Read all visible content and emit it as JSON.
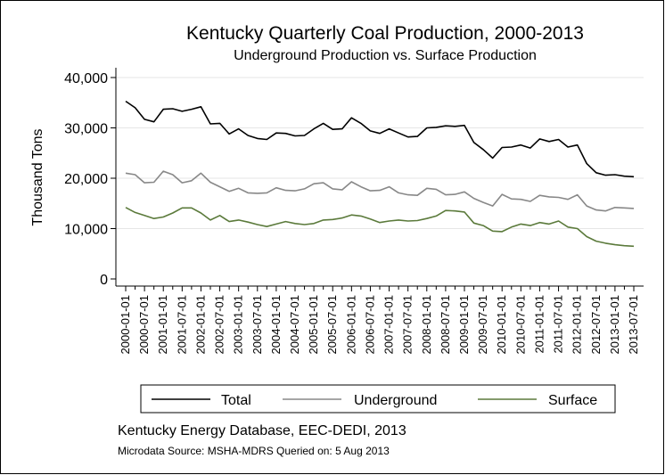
{
  "chart_data": {
    "type": "line",
    "title": "Kentucky Quarterly Coal Production, 2000-2013",
    "subtitle": "Underground Production vs. Surface Production",
    "ylabel": "Thousand Tons",
    "xlabel": "",
    "ylim": [
      0,
      40000
    ],
    "yticks": [
      0,
      10000,
      20000,
      30000,
      40000
    ],
    "ytick_labels": [
      "0",
      "10,000",
      "20,000",
      "30,000",
      "40,000"
    ],
    "grid": true,
    "legend": "bottom",
    "x": [
      "2000-01-01",
      "2000-04-01",
      "2000-07-01",
      "2000-10-01",
      "2001-01-01",
      "2001-04-01",
      "2001-07-01",
      "2001-10-01",
      "2002-01-01",
      "2002-04-01",
      "2002-07-01",
      "2002-10-01",
      "2003-01-01",
      "2003-04-01",
      "2003-07-01",
      "2003-10-01",
      "2004-01-01",
      "2004-04-01",
      "2004-07-01",
      "2004-10-01",
      "2005-01-01",
      "2005-04-01",
      "2005-07-01",
      "2005-10-01",
      "2006-01-01",
      "2006-04-01",
      "2006-07-01",
      "2006-10-01",
      "2007-01-01",
      "2007-04-01",
      "2007-07-01",
      "2007-10-01",
      "2008-01-01",
      "2008-04-01",
      "2008-07-01",
      "2008-10-01",
      "2009-01-01",
      "2009-04-01",
      "2009-07-01",
      "2009-10-01",
      "2010-01-01",
      "2010-04-01",
      "2010-07-01",
      "2010-10-01",
      "2011-01-01",
      "2011-04-01",
      "2011-07-01",
      "2011-10-01",
      "2012-01-01",
      "2012-04-01",
      "2012-07-01",
      "2012-10-01",
      "2013-01-01",
      "2013-04-01",
      "2013-07-01"
    ],
    "x_tick_labels": [
      "2000-01-01",
      "2000-07-01",
      "2001-01-01",
      "2001-07-01",
      "2002-01-01",
      "2002-07-01",
      "2003-01-01",
      "2003-07-01",
      "2004-01-01",
      "2004-07-01",
      "2005-01-01",
      "2005-07-01",
      "2006-01-01",
      "2006-07-01",
      "2007-01-01",
      "2007-07-01",
      "2008-01-01",
      "2008-07-01",
      "2009-01-01",
      "2009-07-01",
      "2010-01-01",
      "2010-07-01",
      "2011-01-01",
      "2011-07-01",
      "2012-01-01",
      "2012-07-01",
      "2013-01-01",
      "2013-07-01"
    ],
    "series": [
      {
        "name": "Total",
        "color": "#000000",
        "values": [
          35300,
          34000,
          31700,
          31200,
          33700,
          33800,
          33300,
          33700,
          34200,
          30800,
          30900,
          28800,
          29800,
          28500,
          27900,
          27700,
          29000,
          28900,
          28400,
          28500,
          29800,
          30900,
          29700,
          29800,
          32000,
          30900,
          29400,
          28900,
          29800,
          29000,
          28200,
          28300,
          30000,
          30100,
          30400,
          30300,
          30500,
          27100,
          25700,
          24000,
          26100,
          26200,
          26600,
          26000,
          27800,
          27300,
          27700,
          26200,
          26600,
          22900,
          21100,
          20600,
          20700,
          20400,
          20300
        ]
      },
      {
        "name": "Underground",
        "color": "#888888",
        "values": [
          21000,
          20700,
          19100,
          19200,
          21400,
          20700,
          19100,
          19500,
          21000,
          19200,
          18300,
          17400,
          18000,
          17100,
          17000,
          17100,
          18100,
          17600,
          17500,
          17900,
          18900,
          19100,
          17900,
          17700,
          19300,
          18300,
          17500,
          17600,
          18300,
          17100,
          16700,
          16600,
          18000,
          17800,
          16700,
          16800,
          17300,
          16000,
          15200,
          14500,
          16800,
          15900,
          15800,
          15400,
          16600,
          16300,
          16200,
          15800,
          16700,
          14500,
          13700,
          13500,
          14200,
          14100,
          14000
        ]
      },
      {
        "name": "Surface",
        "color": "#5b7a3b",
        "values": [
          14200,
          13200,
          12600,
          12000,
          12300,
          13100,
          14100,
          14100,
          13100,
          11700,
          12600,
          11400,
          11700,
          11300,
          10800,
          10400,
          10900,
          11400,
          11000,
          10800,
          11000,
          11700,
          11800,
          12100,
          12700,
          12500,
          11900,
          11200,
          11500,
          11700,
          11500,
          11600,
          12000,
          12500,
          13600,
          13500,
          13300,
          11100,
          10600,
          9500,
          9400,
          10300,
          10900,
          10600,
          11200,
          10900,
          11500,
          10300,
          10000,
          8400,
          7500,
          7100,
          6800,
          6600,
          6500
        ]
      }
    ],
    "notes": [
      "Kentucky Energy Database, EEC-DEDI, 2013",
      "Microdata Source: MSHA-MDRS Queried on: 5 Aug 2013"
    ]
  }
}
